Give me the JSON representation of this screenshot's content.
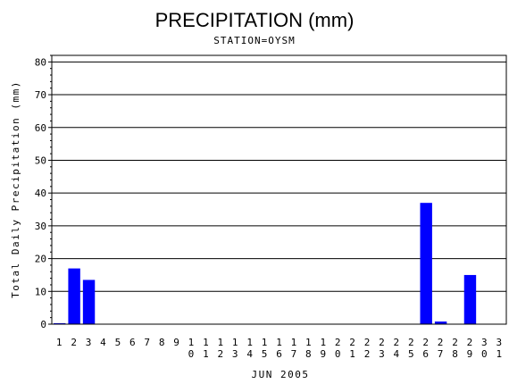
{
  "chart_data": {
    "type": "bar",
    "title": "PRECIPITATION (mm)",
    "subtitle": "STATION=OYSM",
    "xlabel": "JUN 2005",
    "ylabel": "Total Daily Precipitation (mm)",
    "ylim": [
      0,
      82
    ],
    "yticks": [
      0,
      10,
      20,
      30,
      40,
      50,
      60,
      70,
      80
    ],
    "grid": true,
    "bar_color": "#0000ff",
    "categories": [
      "1",
      "2",
      "3",
      "4",
      "5",
      "6",
      "7",
      "8",
      "9",
      "10",
      "11",
      "12",
      "13",
      "14",
      "15",
      "16",
      "17",
      "18",
      "19",
      "20",
      "21",
      "22",
      "23",
      "24",
      "25",
      "26",
      "27",
      "28",
      "29",
      "30",
      "31"
    ],
    "values": [
      0.3,
      17,
      13.5,
      0,
      0,
      0,
      0,
      0,
      0,
      0,
      0,
      0,
      0,
      0,
      0,
      0,
      0,
      0,
      0,
      0,
      0,
      0,
      0,
      0,
      0,
      37,
      0.8,
      0,
      15,
      0,
      0
    ]
  }
}
